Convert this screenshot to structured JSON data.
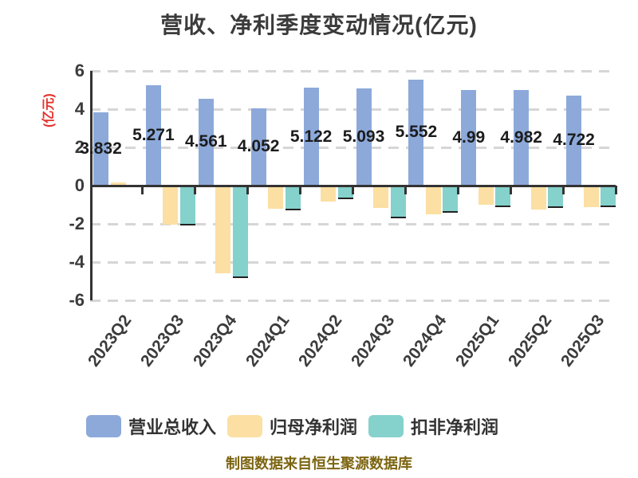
{
  "title": "营收、净利季度变动情况(亿元)",
  "footer": {
    "text": "制图数据来自恒生聚源数据库"
  },
  "colors": {
    "series_blue": "#8CA9DA",
    "series_tan": "#FBDFA3",
    "series_teal": "#85D1CC",
    "y_axis_label_red": "#E5302A",
    "footer_gold": "#7C6511",
    "title_text": "#3B3B3B",
    "axis_dark": "#333333",
    "grid_gray": "#D6D6D6"
  },
  "chart_data": {
    "type": "bar",
    "title": "营收、净利季度变动情况(亿元)",
    "xlabel": "",
    "ylabel": "(亿元)",
    "ylim": [
      -6,
      6
    ],
    "y_ticks": [
      6,
      4,
      2,
      0,
      -2,
      -4,
      -6
    ],
    "grid": "horizontal dashed (zero line solid dark)",
    "legend_position": "bottom",
    "categories": [
      "2023Q2",
      "2023Q3",
      "2023Q4",
      "2024Q1",
      "2024Q2",
      "2024Q3",
      "2024Q4",
      "2025Q1",
      "2025Q2",
      "2025Q3"
    ],
    "series": [
      {
        "name": "营业总收入",
        "color": "#8CA9DA",
        "values": [
          3.832,
          5.271,
          4.561,
          4.052,
          5.122,
          5.093,
          5.552,
          4.99,
          4.982,
          4.722
        ]
      },
      {
        "name": "归母净利润",
        "color": "#FBDFA3",
        "values": [
          0.18,
          -2.02,
          -4.57,
          -1.2,
          -0.82,
          -1.16,
          -1.5,
          -0.98,
          -1.26,
          -1.12
        ]
      },
      {
        "name": "扣非净利润",
        "color": "#85D1CC",
        "values": [
          -0.1,
          -2.1,
          -4.85,
          -1.27,
          -0.7,
          -1.71,
          -1.42,
          -1.12,
          -1.15,
          -1.13
        ]
      }
    ],
    "bar_value_labels": [
      "3.832",
      "5.271",
      "4.561",
      "4.052",
      "5.122",
      "5.093",
      "5.552",
      "4.99",
      "4.982",
      "4.722"
    ]
  }
}
